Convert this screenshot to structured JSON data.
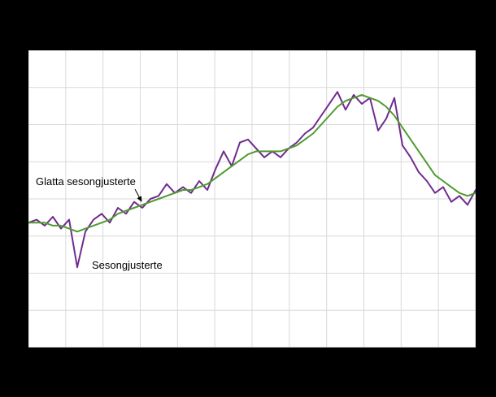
{
  "chart_data": {
    "type": "line",
    "title": "",
    "xlabel": "",
    "ylabel": "",
    "x_axis": {
      "tick_labels_visible": false
    },
    "y_axis": {
      "tick_labels_visible": false
    },
    "ylim": [
      0,
      100
    ],
    "layout": {
      "grid": true,
      "x_intervals": 12,
      "y_intervals": 8,
      "legend_position": "inline-annotations"
    },
    "series": [
      {
        "name": "Sesongjusterte",
        "color": "#702c8e",
        "values": [
          42,
          43,
          41,
          44,
          40,
          43,
          27,
          39,
          43,
          45,
          42,
          47,
          45,
          49,
          47,
          50,
          51,
          55,
          52,
          54,
          52,
          56,
          53,
          60,
          66,
          61,
          69,
          70,
          67,
          64,
          66,
          64,
          67,
          69,
          72,
          74,
          78,
          82,
          86,
          80,
          85,
          82,
          84,
          73,
          77,
          84,
          68,
          64,
          59,
          56,
          52,
          54,
          49,
          51,
          48,
          53
        ]
      },
      {
        "name": "Glatta sesongjusterte",
        "color": "#4f9b2f",
        "values": [
          42,
          42,
          42,
          41,
          41,
          40,
          39,
          40,
          41,
          42,
          43,
          45,
          46,
          47,
          48,
          49,
          50,
          51,
          52,
          53,
          53,
          54,
          55,
          57,
          59,
          61,
          63,
          65,
          66,
          66,
          66,
          66,
          67,
          68,
          70,
          72,
          75,
          78,
          81,
          83,
          84,
          85,
          84,
          83,
          81,
          78,
          74,
          70,
          66,
          62,
          58,
          56,
          54,
          52,
          51,
          52
        ]
      }
    ],
    "annotations": [
      {
        "text": "Glatta sesongjusterte",
        "points_to_series": "Glatta sesongjusterte"
      },
      {
        "text": "Sesongjusterte",
        "points_to_series": "Sesongjusterte"
      }
    ]
  },
  "colors": {
    "frame_bg": "#000000",
    "plot_bg": "#ffffff",
    "grid": "#d9d9d9",
    "annotation_text": "#000000",
    "series_seasonal": "#702c8e",
    "series_smoothed": "#4f9b2f"
  }
}
